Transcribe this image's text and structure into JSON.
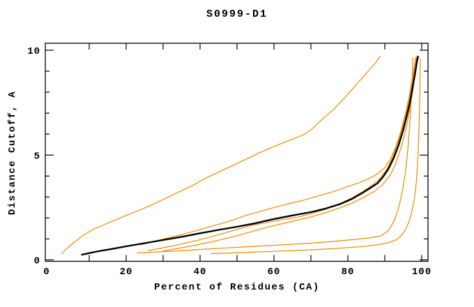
{
  "title": "S0999-D1",
  "chart_data": {
    "type": "line",
    "title": "S0999-D1",
    "xlabel": "Percent of Residues (CA)",
    "ylabel": "Distance Cutoff, A",
    "xlim": [
      0,
      100
    ],
    "ylim": [
      0,
      10
    ],
    "x_tick_step": 10,
    "x_label_values": [
      0,
      20,
      40,
      60,
      80,
      100
    ],
    "y_major_ticks": [
      0,
      5,
      10
    ],
    "y_minor_ticks": [
      1,
      2,
      3,
      4,
      6,
      7,
      8,
      9
    ],
    "y_label_values": [
      0,
      5,
      10
    ],
    "grid": false,
    "legend": "none",
    "accent_color": "#ee8800",
    "reference_color": "#000000",
    "series": [
      {
        "name": "orange-model-1",
        "color": "#ee8800",
        "width": 1.2,
        "points": [
          [
            2.5,
            0.3
          ],
          [
            4,
            0.55
          ],
          [
            6,
            0.85
          ],
          [
            8,
            1.12
          ],
          [
            11,
            1.45
          ],
          [
            14,
            1.68
          ],
          [
            17,
            1.9
          ],
          [
            20,
            2.12
          ],
          [
            23,
            2.33
          ],
          [
            26,
            2.55
          ],
          [
            29,
            2.8
          ],
          [
            32,
            3.05
          ],
          [
            35,
            3.3
          ],
          [
            38,
            3.55
          ],
          [
            41,
            3.85
          ],
          [
            44,
            4.1
          ],
          [
            47,
            4.35
          ],
          [
            50,
            4.6
          ],
          [
            53,
            4.85
          ],
          [
            56,
            5.1
          ],
          [
            59,
            5.33
          ],
          [
            62,
            5.55
          ],
          [
            65,
            5.75
          ],
          [
            68,
            5.97
          ],
          [
            70,
            6.2
          ],
          [
            73,
            6.7
          ],
          [
            76,
            7.15
          ],
          [
            79,
            7.7
          ],
          [
            82,
            8.3
          ],
          [
            84,
            8.7
          ],
          [
            86,
            9.1
          ],
          [
            87.5,
            9.4
          ],
          [
            88.7,
            9.7
          ]
        ]
      },
      {
        "name": "orange-model-2",
        "color": "#ee8800",
        "width": 1.2,
        "points": [
          [
            24,
            0.72
          ],
          [
            28,
            0.9
          ],
          [
            32,
            1.08
          ],
          [
            36,
            1.25
          ],
          [
            40,
            1.45
          ],
          [
            44,
            1.65
          ],
          [
            48,
            1.85
          ],
          [
            52,
            2.1
          ],
          [
            56,
            2.3
          ],
          [
            60,
            2.5
          ],
          [
            64,
            2.68
          ],
          [
            68,
            2.85
          ],
          [
            72,
            3.05
          ],
          [
            76,
            3.25
          ],
          [
            80,
            3.5
          ],
          [
            83,
            3.68
          ],
          [
            86,
            3.9
          ],
          [
            88,
            4.1
          ],
          [
            90,
            4.4
          ],
          [
            91.5,
            4.8
          ],
          [
            93,
            5.4
          ],
          [
            94.3,
            6.1
          ],
          [
            95.5,
            6.9
          ],
          [
            96.5,
            7.7
          ],
          [
            97.3,
            8.5
          ],
          [
            98,
            9.2
          ],
          [
            98.4,
            9.65
          ]
        ]
      },
      {
        "name": "orange-model-3",
        "color": "#ee8800",
        "width": 1.2,
        "points": [
          [
            26,
            0.45
          ],
          [
            30,
            0.58
          ],
          [
            34,
            0.72
          ],
          [
            38,
            0.88
          ],
          [
            42,
            1.05
          ],
          [
            46,
            1.25
          ],
          [
            50,
            1.45
          ],
          [
            54,
            1.65
          ],
          [
            58,
            1.78
          ],
          [
            62,
            1.92
          ],
          [
            66,
            2.02
          ],
          [
            70,
            2.2
          ],
          [
            74,
            2.42
          ],
          [
            78,
            2.7
          ],
          [
            81,
            2.95
          ],
          [
            84,
            3.25
          ],
          [
            86.5,
            3.55
          ],
          [
            88.5,
            3.85
          ],
          [
            90.5,
            4.3
          ],
          [
            92,
            4.85
          ],
          [
            93.5,
            5.55
          ],
          [
            95,
            6.4
          ],
          [
            96.2,
            7.3
          ],
          [
            97.2,
            8.2
          ],
          [
            98,
            9.0
          ],
          [
            98.6,
            9.68
          ]
        ]
      },
      {
        "name": "orange-model-4",
        "color": "#ee8800",
        "width": 1.2,
        "points": [
          [
            30,
            0.42
          ],
          [
            34,
            0.55
          ],
          [
            38,
            0.68
          ],
          [
            42,
            0.82
          ],
          [
            46,
            0.98
          ],
          [
            50,
            1.15
          ],
          [
            54,
            1.35
          ],
          [
            58,
            1.55
          ],
          [
            62,
            1.72
          ],
          [
            66,
            1.88
          ],
          [
            70,
            2.05
          ],
          [
            74,
            2.25
          ],
          [
            78,
            2.5
          ],
          [
            81,
            2.7
          ],
          [
            84,
            2.95
          ],
          [
            87,
            3.25
          ],
          [
            89.5,
            3.6
          ],
          [
            91.5,
            4.05
          ],
          [
            93,
            4.6
          ],
          [
            94.5,
            5.4
          ],
          [
            95.8,
            6.3
          ],
          [
            96.8,
            7.2
          ],
          [
            97.6,
            8.1
          ],
          [
            98.3,
            9.0
          ],
          [
            98.8,
            9.68
          ]
        ]
      },
      {
        "name": "orange-model-5",
        "color": "#ee8800",
        "width": 1.2,
        "points": [
          [
            23,
            0.33
          ],
          [
            28,
            0.38
          ],
          [
            34,
            0.43
          ],
          [
            40,
            0.5
          ],
          [
            46,
            0.56
          ],
          [
            52,
            0.62
          ],
          [
            58,
            0.68
          ],
          [
            64,
            0.74
          ],
          [
            70,
            0.8
          ],
          [
            76,
            0.88
          ],
          [
            82,
            0.98
          ],
          [
            86,
            1.05
          ],
          [
            89,
            1.15
          ],
          [
            91,
            1.4
          ],
          [
            92.5,
            1.85
          ],
          [
            93.8,
            2.5
          ],
          [
            94.8,
            3.3
          ],
          [
            95.6,
            4.2
          ],
          [
            96.2,
            5.2
          ],
          [
            96.7,
            6.3
          ],
          [
            97.1,
            7.4
          ],
          [
            97.4,
            8.5
          ],
          [
            97.6,
            9.65
          ]
        ]
      },
      {
        "name": "orange-model-6",
        "color": "#ee8800",
        "width": 1.2,
        "points": [
          [
            43,
            0.3
          ],
          [
            48,
            0.33
          ],
          [
            54,
            0.37
          ],
          [
            60,
            0.41
          ],
          [
            66,
            0.45
          ],
          [
            72,
            0.5
          ],
          [
            78,
            0.56
          ],
          [
            84,
            0.64
          ],
          [
            88,
            0.72
          ],
          [
            91,
            0.82
          ],
          [
            93,
            0.95
          ],
          [
            94.5,
            1.15
          ],
          [
            95.5,
            1.4
          ],
          [
            96.5,
            1.8
          ],
          [
            97.3,
            2.3
          ],
          [
            98,
            2.9
          ],
          [
            98.6,
            3.8
          ],
          [
            99,
            5.0
          ],
          [
            99.3,
            6.5
          ],
          [
            99.5,
            8.0
          ],
          [
            99.6,
            9.6
          ]
        ]
      },
      {
        "name": "black-reference",
        "color": "#000000",
        "width": 2.4,
        "points": [
          [
            8,
            0.25
          ],
          [
            12,
            0.4
          ],
          [
            16,
            0.52
          ],
          [
            20,
            0.65
          ],
          [
            25,
            0.8
          ],
          [
            30,
            0.95
          ],
          [
            35,
            1.1
          ],
          [
            40,
            1.27
          ],
          [
            45,
            1.43
          ],
          [
            50,
            1.58
          ],
          [
            55,
            1.75
          ],
          [
            60,
            1.95
          ],
          [
            65,
            2.12
          ],
          [
            70,
            2.28
          ],
          [
            74,
            2.45
          ],
          [
            78,
            2.67
          ],
          [
            81,
            2.9
          ],
          [
            84,
            3.2
          ],
          [
            86,
            3.42
          ],
          [
            88,
            3.65
          ],
          [
            89.5,
            3.95
          ],
          [
            91,
            4.35
          ],
          [
            92.5,
            4.9
          ],
          [
            93.8,
            5.5
          ],
          [
            95,
            6.2
          ],
          [
            96,
            6.9
          ],
          [
            96.8,
            7.5
          ],
          [
            97.5,
            8.2
          ],
          [
            98.2,
            8.9
          ],
          [
            98.7,
            9.45
          ],
          [
            99,
            9.7
          ]
        ]
      }
    ]
  }
}
